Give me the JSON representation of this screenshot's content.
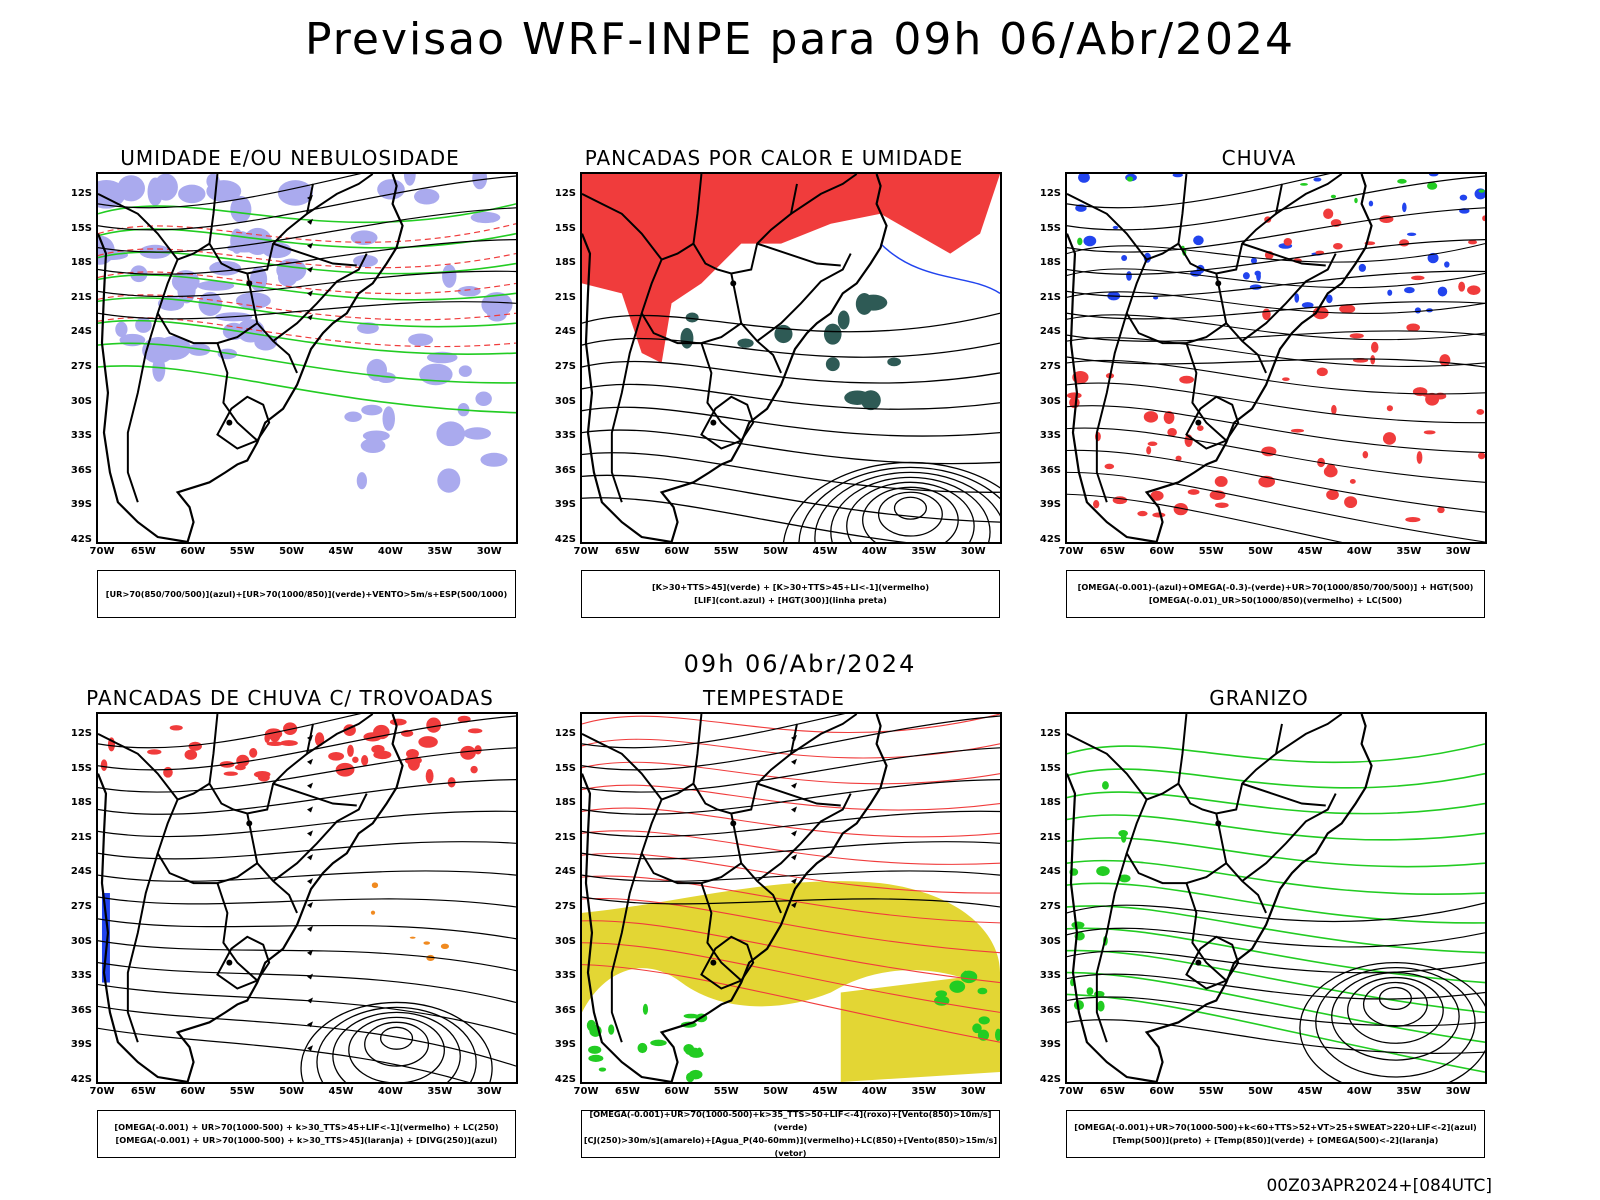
{
  "header": {
    "title": "Previsao WRF-INPE  para 09h 06/Abr/2024"
  },
  "mid": {
    "title": "09h 06/Abr/2024"
  },
  "footer": {
    "run": "00Z03APR2024+[084UTC]"
  },
  "axes": {
    "y": [
      "12S",
      "15S",
      "18S",
      "21S",
      "24S",
      "27S",
      "30S",
      "33S",
      "36S",
      "39S",
      "42S"
    ],
    "x": [
      "70W",
      "65W",
      "60W",
      "55W",
      "50W",
      "45W",
      "40W",
      "35W",
      "30W"
    ]
  },
  "panels": [
    {
      "title": "UMIDADE E/OU NEBULOSIDADE",
      "legend": [
        "[UR>70(850/700/500)](azul)+[UR>70(1000/850)](verde)+VENTO>5m/s+ESP(500/1000)"
      ]
    },
    {
      "title": "PANCADAS POR CALOR E UMIDADE",
      "legend": [
        "[K>30+TTS>45](verde) + [K>30+TTS>45+LI<-1](vermelho)",
        "[LIF](cont.azul) + [HGT(300)](linha preta)"
      ]
    },
    {
      "title": "CHUVA",
      "legend": [
        "[OMEGA(-0.001)-(azul)+OMEGA(-0.3)-(verde)+UR>70(1000/850/700/500)] + HGT(500)",
        "[OMEGA(-0.01)_UR>50(1000/850)(vermelho) + LC(500)"
      ]
    },
    {
      "title": "PANCADAS DE CHUVA C/ TROVOADAS",
      "legend": [
        "[OMEGA(-0.001) + UR>70(1000-500) + k>30_TTS>45+LIF<-1](vermelho) + LC(250)",
        "[OMEGA(-0.001) + UR>70(1000-500) + k>30_TTS>45](laranja) + [DIVG(250)](azul)"
      ]
    },
    {
      "title": "TEMPESTADE",
      "legend": [
        "[OMEGA(-0.001)+UR>70(1000-500)+k>35_TTS>50+LIF<-4](roxo)+[Vento(850)>10m/s](verde)",
        "[CJ(250)>30m/s](amarelo)+[Agua_P(40-60mm)](vermelho)+LC(850)+[Vento(850)>15m/s](vetor)"
      ]
    },
    {
      "title": "GRANIZO",
      "legend": [
        "[OMEGA(-0.001)+UR>70(1000-500)+k<60+TTS>52+VT>25+SWEAT>220+LIF<-2](azul)",
        "[Temp(500)](preto) + [Temp(850)](verde) + [OMEGA(500)<-2](laranja)"
      ]
    }
  ],
  "colors": {
    "red": "#f03c3c",
    "green": "#22cc22",
    "blue": "#2244ee",
    "lav": "#aaaaee",
    "yellow": "#e3d634",
    "teal": "#2e5a55",
    "orange": "#f08a20"
  }
}
